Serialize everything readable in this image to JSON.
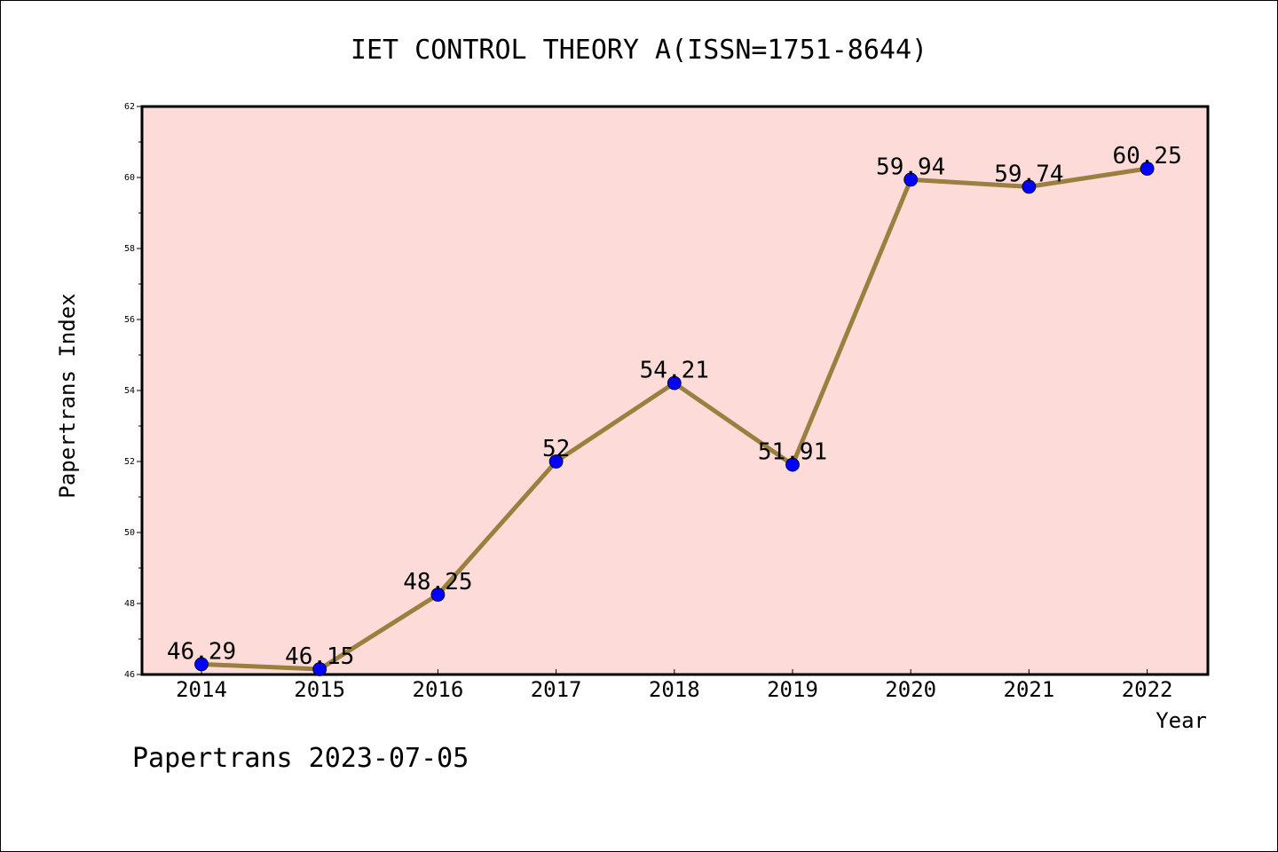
{
  "chart_data": {
    "type": "line",
    "title": "IET CONTROL THEORY A(ISSN=1751-8644)",
    "xlabel": "Year",
    "ylabel": "Papertrans Index",
    "categories": [
      "2014",
      "2015",
      "2016",
      "2017",
      "2018",
      "2019",
      "2020",
      "2021",
      "2022"
    ],
    "series": [
      {
        "values": [
          46.29,
          46.15,
          48.25,
          52,
          54.21,
          51.91,
          59.94,
          59.74,
          60.25
        ],
        "data_labels": [
          "46.29",
          "46.15",
          "48.25",
          "52",
          "54.21",
          "51.91",
          "59.94",
          "59.74",
          "60.25"
        ],
        "line_color": "#9b7f3f",
        "marker_color": "#0000ff"
      }
    ],
    "ylim": [
      46,
      62
    ],
    "y_ticks": [
      "46",
      "48",
      "50",
      "52",
      "54",
      "56",
      "58",
      "60",
      "62"
    ],
    "plot_background": "#fddbd8",
    "grid": false,
    "footer": "Papertrans 2023-07-05"
  }
}
